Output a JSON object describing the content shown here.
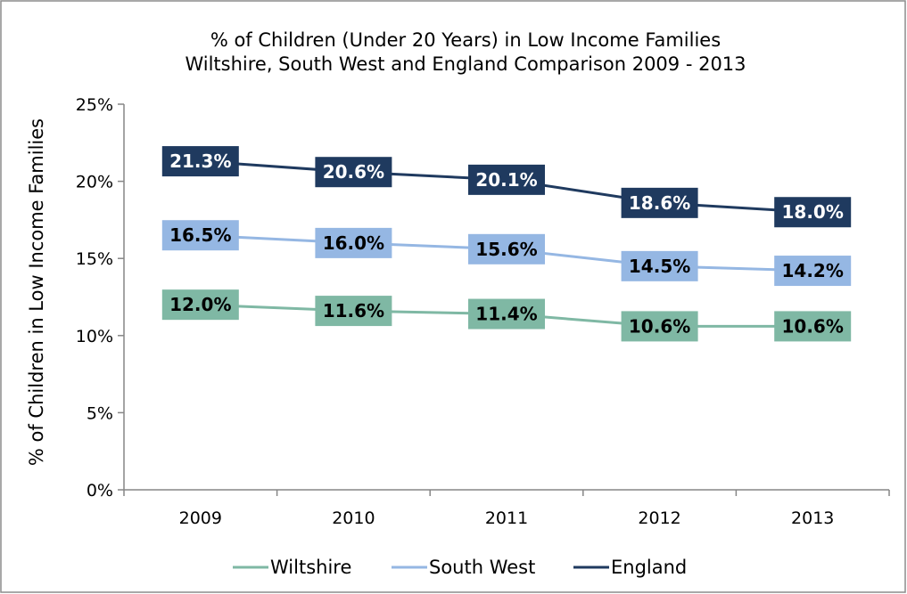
{
  "chart_data": {
    "type": "line",
    "title": "% of Children (Under 20 Years) in Low Income Families",
    "subtitle": "Wiltshire, South West and England Comparison 2009 - 2013",
    "xlabel": "",
    "ylabel": "% of Children  in Low Income Families",
    "categories": [
      "2009",
      "2010",
      "2011",
      "2012",
      "2013"
    ],
    "ylim": [
      0,
      25
    ],
    "yticks": [
      0,
      5,
      10,
      15,
      20,
      25
    ],
    "ytick_labels": [
      "0%",
      "5%",
      "10%",
      "15%",
      "20%",
      "25%"
    ],
    "grid": false,
    "legend_position": "bottom",
    "series": [
      {
        "name": "Wiltshire",
        "color": "#7fb8a4",
        "label_text_color": "#000000",
        "values": [
          12.0,
          11.6,
          11.4,
          10.6,
          10.6
        ],
        "data_labels": [
          "12.0%",
          "11.6%",
          "11.4%",
          "10.6%",
          "10.6%"
        ]
      },
      {
        "name": "South West",
        "color": "#95b7e3",
        "label_text_color": "#000000",
        "values": [
          16.5,
          16.0,
          15.6,
          14.5,
          14.2
        ],
        "data_labels": [
          "16.5%",
          "16.0%",
          "15.6%",
          "14.5%",
          "14.2%"
        ]
      },
      {
        "name": "England",
        "color": "#1f3a5f",
        "label_text_color": "#ffffff",
        "values": [
          21.3,
          20.6,
          20.1,
          18.6,
          18.0
        ],
        "data_labels": [
          "21.3%",
          "20.6%",
          "20.1%",
          "18.6%",
          "18.0%"
        ]
      }
    ]
  }
}
